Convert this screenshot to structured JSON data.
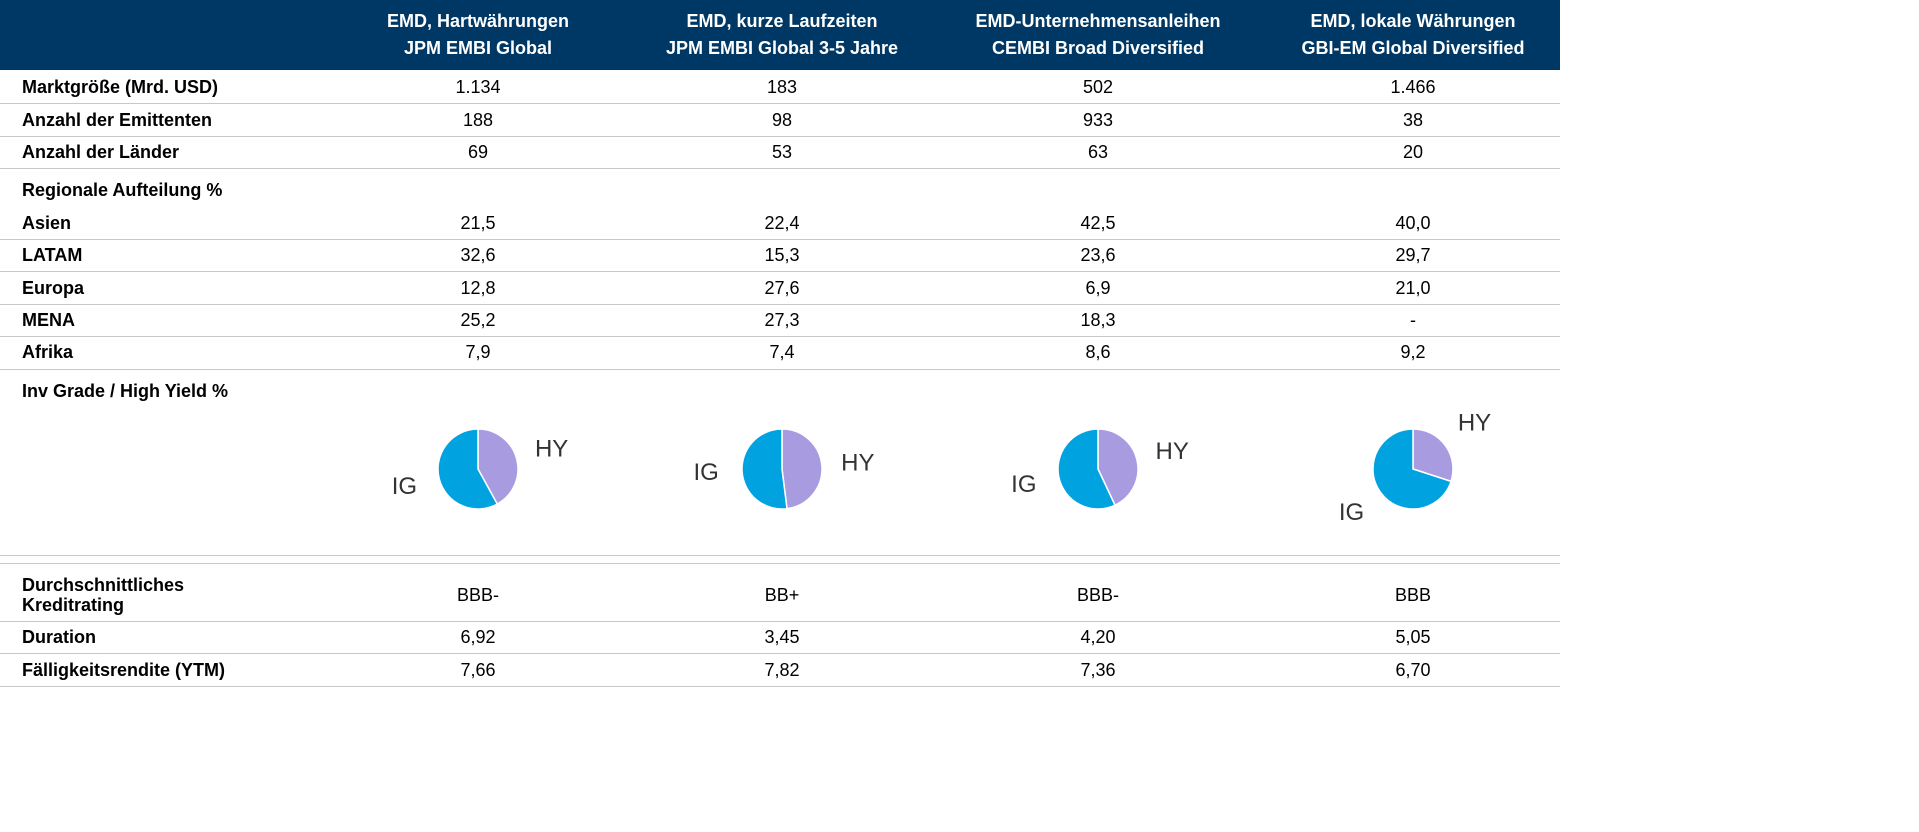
{
  "table": {
    "header": [
      [
        "EMD, Hartwährungen",
        "JPM EMBI Global"
      ],
      [
        "EMD, kurze Laufzeiten",
        "JPM EMBI Global 3-5 Jahre"
      ],
      [
        "EMD-Unternehmensanleihen",
        "CEMBI Broad Diversified"
      ],
      [
        "EMD, lokale Währungen",
        "GBI-EM Global Diversified"
      ]
    ],
    "groups": [
      {
        "rows": [
          {
            "label": "Marktgröße (Mrd. USD)",
            "values": [
              "1.134",
              "183",
              "502",
              "1.466"
            ]
          },
          {
            "label": "Anzahl der Emittenten",
            "values": [
              "188",
              "98",
              "933",
              "38"
            ]
          },
          {
            "label": "Anzahl der Länder",
            "values": [
              "69",
              "53",
              "63",
              "20"
            ]
          }
        ]
      },
      {
        "title": "Regionale Aufteilung %",
        "rows": [
          {
            "label": "Asien",
            "values": [
              "21,5",
              "22,4",
              "42,5",
              "40,0"
            ]
          },
          {
            "label": "LATAM",
            "values": [
              "32,6",
              "15,3",
              "23,6",
              "29,7"
            ]
          },
          {
            "label": "Europa",
            "values": [
              "12,8",
              "27,6",
              "6,9",
              "21,0"
            ]
          },
          {
            "label": "MENA",
            "values": [
              "25,2",
              "27,3",
              "18,3",
              "-"
            ]
          },
          {
            "label": "Afrika",
            "values": [
              "7,9",
              "7,4",
              "8,6",
              "9,2"
            ]
          }
        ]
      },
      {
        "title": "Inv Grade / High Yield %",
        "pies": {
          "labels": [
            "IG",
            "HY"
          ],
          "colors": [
            "#00a3e0",
            "#a99be0"
          ],
          "charts": [
            {
              "type": "pie",
              "values": [
                58,
                42
              ]
            },
            {
              "type": "pie",
              "values": [
                52,
                48
              ]
            },
            {
              "type": "pie",
              "values": [
                57,
                43
              ]
            },
            {
              "type": "pie",
              "values": [
                70,
                30
              ]
            }
          ]
        }
      },
      {
        "rows": [
          {
            "label": "Durchschnittliches Kreditrating",
            "values": [
              "BBB-",
              "BB+",
              "BBB-",
              "BBB"
            ]
          },
          {
            "label": "Duration",
            "values": [
              "6,92",
              "3,45",
              "4,20",
              "5,05"
            ]
          },
          {
            "label": "Fälligkeitsrendite (YTM)",
            "values": [
              "7,66",
              "7,82",
              "7,36",
              "6,70"
            ]
          }
        ]
      }
    ]
  }
}
